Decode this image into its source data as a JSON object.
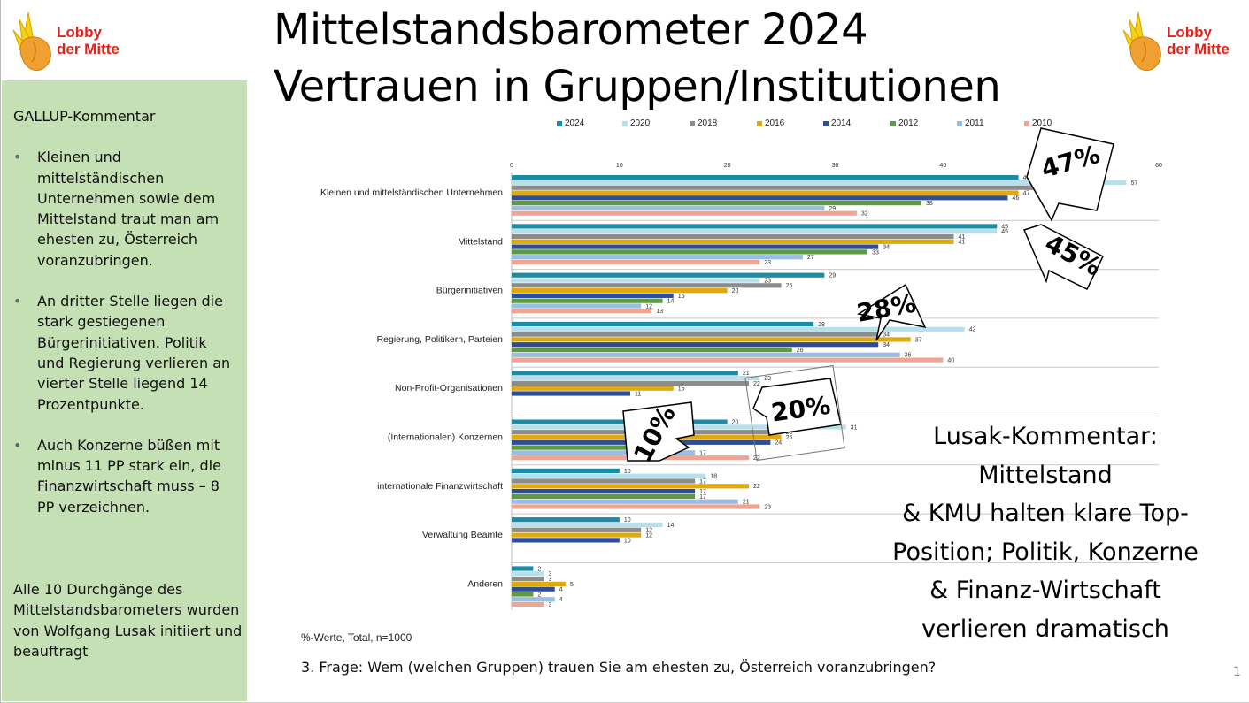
{
  "logo": {
    "line1": "Lobby",
    "line2": "der Mitte"
  },
  "title": {
    "line1": "Mittelstandsbarometer 2024",
    "line2": "Vertrauen in Gruppen/Institutionen"
  },
  "side_panel": {
    "heading": "GALLUP-Kommentar",
    "bullets": [
      "Kleinen und mittelständischen Unternehmen sowie dem Mittelstand traut man am ehesten zu,  Österreich voranzubringen.",
      "An dritter Stelle liegen die stark gestiegenen Bürgerinitiativen. Politik und Regierung verlieren an vierter Stelle liegend 14 Prozentpunkte.",
      "Auch Konzerne büßen mit minus 11 PP stark ein, die Finanzwirtschaft muss – 8 PP verzeichnen."
    ],
    "footer": "Alle 10 Durchgänge des Mittelstandsbarometers wurden von Wolfgang Lusak initiiert und beauftragt"
  },
  "chart_data": {
    "type": "bar",
    "orientation": "horizontal",
    "categories": [
      "Kleinen und mittelständischen Unternehmen",
      "Mittelstand",
      "Bürgerinitiativen",
      "Regierung, Politikern, Parteien",
      "Non-Profit-Organisationen",
      "(Internationalen) Konzernen",
      "internationale Finanzwirtschaft",
      "Verwaltung Beamte",
      "Anderen"
    ],
    "series": [
      {
        "name": "2024",
        "color": "#1b8ba6",
        "values": [
          47,
          45,
          29,
          28,
          21,
          20,
          10,
          10,
          2
        ]
      },
      {
        "name": "2020",
        "color": "#b8e0ea",
        "values": [
          57,
          45,
          23,
          42,
          23,
          31,
          18,
          14,
          3
        ]
      },
      {
        "name": "2018",
        "color": "#8c8c8c",
        "values": [
          50,
          41,
          25,
          34,
          22,
          25,
          17,
          12,
          3
        ]
      },
      {
        "name": "2016",
        "color": "#e0aa0e",
        "values": [
          47,
          41,
          20,
          37,
          15,
          25,
          22,
          12,
          5
        ]
      },
      {
        "name": "2014",
        "color": "#2e4d97",
        "values": [
          46,
          34,
          15,
          34,
          11,
          24,
          17,
          10,
          4
        ]
      },
      {
        "name": "2012",
        "color": "#5d9a44",
        "values": [
          38,
          33,
          14,
          26,
          null,
          15,
          17,
          null,
          2
        ]
      },
      {
        "name": "2011",
        "color": "#9bbde3",
        "values": [
          29,
          27,
          12,
          36,
          null,
          17,
          21,
          null,
          4
        ]
      },
      {
        "name": "2010",
        "color": "#f0a593",
        "values": [
          32,
          23,
          13,
          40,
          null,
          22,
          23,
          null,
          3
        ]
      }
    ],
    "xlim": [
      0,
      60
    ],
    "xticks": [
      0,
      10,
      20,
      30,
      40,
      50,
      60
    ],
    "legend": "top"
  },
  "callouts": [
    "47%",
    "45%",
    "28%",
    "20%",
    "10%"
  ],
  "lusak": {
    "lines": [
      "Lusak-Kommentar:",
      "Mittelstand",
      "& KMU halten klare Top-",
      "Position; Politik, Konzerne",
      "& Finanz-Wirtschaft",
      "verlieren dramatisch"
    ]
  },
  "note": "%-Werte, Total, n=1000",
  "question": "3. Frage: Wem (welchen Gruppen) trauen Sie am ehesten zu, Österreich voranzubringen?",
  "page_number": "1"
}
